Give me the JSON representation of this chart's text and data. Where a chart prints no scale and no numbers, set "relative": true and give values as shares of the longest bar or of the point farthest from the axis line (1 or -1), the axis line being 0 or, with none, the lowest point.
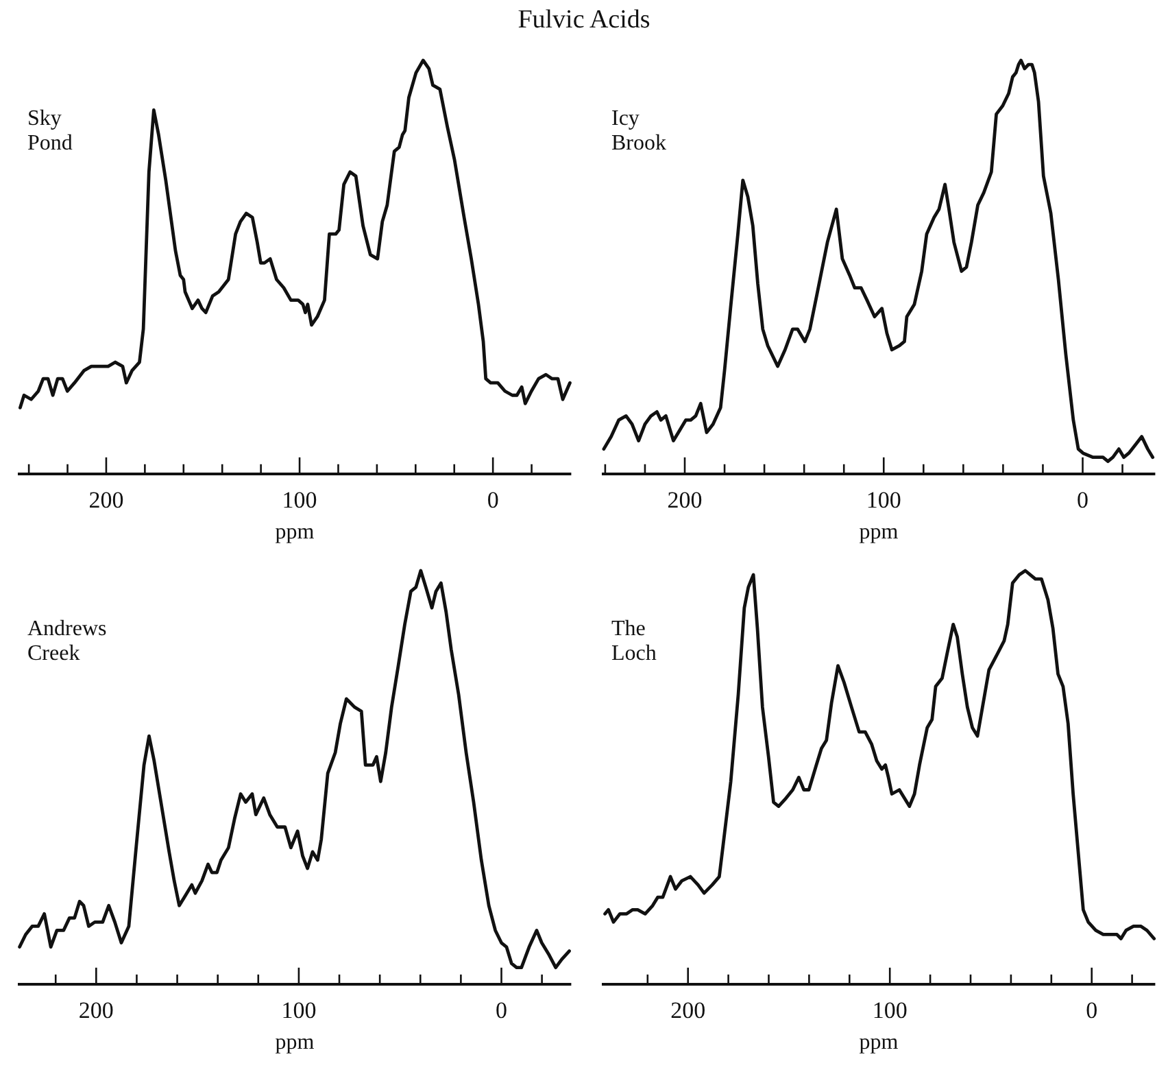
{
  "chart_data": [
    {
      "type": "line",
      "title": "Sky Pond",
      "annotations": [
        "Fulvic Acids"
      ],
      "xlabel": "ppm",
      "relative": true,
      "tick_labels": "x",
      "xlim": [
        245,
        -40
      ],
      "xticks": [
        {
          "value": 240,
          "label": null
        },
        {
          "value": 220,
          "label": null
        },
        200,
        {
          "value": 180,
          "label": null
        },
        {
          "value": 160,
          "label": null
        },
        {
          "value": 140,
          "label": null
        },
        {
          "value": 120,
          "label": null
        },
        100,
        {
          "value": 80,
          "label": null
        },
        {
          "value": 60,
          "label": null
        },
        {
          "value": 40,
          "label": null
        },
        {
          "value": 20,
          "label": null
        },
        0,
        {
          "value": -20,
          "label": null
        }
      ],
      "x": [
        244.5,
        242.5,
        238.8,
        235.1,
        232.6,
        230.1,
        227.6,
        225.1,
        222.6,
        220.1,
        216.4,
        211.4,
        207.7,
        205.2,
        199.0,
        195.3,
        191.5,
        189.6,
        186.6,
        182.8,
        180.8,
        177.9,
        175.4,
        172.9,
        169.2,
        164.2,
        161.7,
        160.0,
        159.2,
        155.5,
        152.5,
        150.5,
        148.5,
        145.0,
        141.8,
        136.8,
        133.1,
        130.6,
        127.6,
        124.4,
        121.9,
        120.1,
        118.2,
        115.2,
        111.9,
        108.2,
        104.5,
        100.7,
        98.3,
        97.0,
        95.8,
        93.8,
        90.8,
        87.1,
        84.6,
        81.3,
        79.6,
        77.1,
        73.9,
        70.9,
        67.2,
        63.4,
        59.7,
        57.2,
        54.7,
        51.0,
        48.5,
        46.8,
        45.5,
        43.5,
        39.8,
        36.1,
        33.1,
        31.1,
        27.4,
        23.6,
        19.9,
        14.9,
        11.2,
        7.5,
        5.0,
        3.7,
        1.2,
        -2.5,
        -6.2,
        -10.0,
        -12.4,
        -14.9,
        -16.7,
        -19.9,
        -23.6,
        -27.4,
        -30.6,
        -33.6,
        -36.1,
        -39.8
      ],
      "series": [
        {
          "color": "#111111",
          "values": [
            0.16,
            0.19,
            0.18,
            0.2,
            0.23,
            0.23,
            0.19,
            0.23,
            0.23,
            0.2,
            0.22,
            0.25,
            0.26,
            0.26,
            0.26,
            0.27,
            0.26,
            0.22,
            0.25,
            0.27,
            0.35,
            0.73,
            0.88,
            0.82,
            0.71,
            0.54,
            0.48,
            0.47,
            0.44,
            0.4,
            0.42,
            0.4,
            0.39,
            0.43,
            0.44,
            0.47,
            0.58,
            0.61,
            0.63,
            0.62,
            0.56,
            0.51,
            0.51,
            0.52,
            0.47,
            0.45,
            0.42,
            0.42,
            0.41,
            0.39,
            0.41,
            0.36,
            0.38,
            0.42,
            0.58,
            0.58,
            0.59,
            0.7,
            0.73,
            0.72,
            0.6,
            0.53,
            0.52,
            0.61,
            0.65,
            0.78,
            0.79,
            0.82,
            0.83,
            0.91,
            0.97,
            1.0,
            0.98,
            0.94,
            0.93,
            0.84,
            0.76,
            0.62,
            0.52,
            0.41,
            0.32,
            0.23,
            0.22,
            0.22,
            0.2,
            0.19,
            0.19,
            0.21,
            0.17,
            0.2,
            0.23,
            0.24,
            0.23,
            0.23,
            0.18,
            0.22
          ]
        }
      ]
    },
    {
      "type": "line",
      "title": "Icy Brook",
      "xlabel": "ppm",
      "relative": true,
      "tick_labels": "x",
      "xlim": [
        241,
        -36
      ],
      "xticks": [
        {
          "value": 240,
          "label": null
        },
        {
          "value": 220,
          "label": null
        },
        200,
        {
          "value": 180,
          "label": null
        },
        {
          "value": 160,
          "label": null
        },
        {
          "value": 140,
          "label": null
        },
        {
          "value": 120,
          "label": null
        },
        100,
        {
          "value": 80,
          "label": null
        },
        {
          "value": 60,
          "label": null
        },
        {
          "value": 40,
          "label": null
        },
        {
          "value": 20,
          "label": null
        },
        0,
        {
          "value": -20,
          "label": null
        }
      ],
      "x": [
        240.7,
        237.0,
        233.2,
        229.5,
        226.5,
        223.2,
        220.0,
        217.0,
        214.0,
        212.0,
        209.5,
        205.7,
        203.2,
        199.5,
        197.0,
        194.5,
        192.0,
        189.0,
        185.8,
        182.0,
        180.0,
        177.0,
        173.3,
        170.8,
        168.3,
        165.8,
        163.3,
        160.8,
        158.3,
        153.3,
        149.6,
        145.8,
        143.3,
        139.6,
        137.1,
        133.3,
        128.3,
        123.8,
        120.8,
        117.1,
        114.6,
        111.4,
        108.4,
        104.6,
        100.9,
        98.4,
        95.9,
        92.1,
        89.6,
        88.4,
        84.6,
        80.9,
        78.4,
        74.7,
        72.2,
        69.2,
        67.2,
        64.7,
        60.9,
        58.4,
        55.9,
        52.7,
        49.7,
        45.9,
        43.4,
        40.2,
        37.2,
        35.2,
        33.5,
        32.2,
        31.0,
        29.2,
        27.2,
        25.5,
        24.2,
        22.2,
        19.7,
        16.0,
        12.2,
        8.5,
        4.7,
        2.2,
        -0.2,
        -5.2,
        -10.2,
        -12.7,
        -15.2,
        -18.2,
        -20.7,
        -23.2,
        -26.5,
        -29.7,
        -32.7,
        -35.2
      ],
      "series": [
        {
          "color": "#111111",
          "values": [
            0.06,
            0.09,
            0.13,
            0.14,
            0.12,
            0.08,
            0.12,
            0.14,
            0.15,
            0.13,
            0.14,
            0.08,
            0.1,
            0.13,
            0.13,
            0.14,
            0.17,
            0.1,
            0.12,
            0.16,
            0.25,
            0.4,
            0.58,
            0.71,
            0.67,
            0.6,
            0.46,
            0.35,
            0.31,
            0.26,
            0.3,
            0.35,
            0.35,
            0.32,
            0.35,
            0.44,
            0.56,
            0.64,
            0.52,
            0.48,
            0.45,
            0.45,
            0.42,
            0.38,
            0.4,
            0.34,
            0.3,
            0.31,
            0.32,
            0.38,
            0.41,
            0.49,
            0.58,
            0.62,
            0.64,
            0.7,
            0.64,
            0.56,
            0.49,
            0.5,
            0.56,
            0.65,
            0.68,
            0.73,
            0.87,
            0.89,
            0.92,
            0.96,
            0.97,
            0.99,
            1.0,
            0.98,
            0.99,
            0.99,
            0.97,
            0.9,
            0.72,
            0.63,
            0.47,
            0.29,
            0.13,
            0.06,
            0.05,
            0.04,
            0.04,
            0.03,
            0.04,
            0.06,
            0.04,
            0.05,
            0.07,
            0.09,
            0.06,
            0.04
          ]
        }
      ]
    },
    {
      "type": "line",
      "title": "Andrews Creek",
      "xlabel": "ppm",
      "relative": true,
      "tick_labels": "x",
      "xlim": [
        238,
        -34
      ],
      "xticks": [
        {
          "value": 220,
          "label": null
        },
        200,
        {
          "value": 180,
          "label": null
        },
        {
          "value": 160,
          "label": null
        },
        {
          "value": 140,
          "label": null
        },
        {
          "value": 120,
          "label": null
        },
        100,
        {
          "value": 80,
          "label": null
        },
        {
          "value": 60,
          "label": null
        },
        {
          "value": 40,
          "label": null
        },
        {
          "value": 20,
          "label": null
        },
        0,
        {
          "value": -20,
          "label": null
        }
      ],
      "x": [
        237.8,
        234.8,
        231.6,
        228.6,
        225.6,
        222.4,
        219.4,
        216.1,
        213.2,
        210.7,
        208.2,
        206.2,
        203.7,
        200.7,
        196.8,
        193.8,
        190.8,
        187.6,
        183.9,
        180.1,
        176.4,
        173.9,
        171.4,
        167.7,
        164.0,
        161.5,
        159.0,
        156.5,
        152.8,
        151.1,
        147.8,
        144.8,
        142.9,
        140.4,
        138.4,
        134.7,
        131.7,
        128.7,
        126.2,
        123.0,
        121.2,
        117.3,
        114.3,
        110.6,
        106.8,
        103.9,
        100.6,
        98.1,
        95.7,
        93.2,
        90.7,
        88.9,
        85.7,
        82.0,
        79.5,
        76.5,
        72.5,
        69.1,
        67.1,
        63.4,
        61.6,
        59.6,
        57.1,
        54.2,
        50.9,
        47.7,
        44.7,
        42.2,
        39.8,
        37.3,
        34.3,
        32.3,
        29.8,
        27.3,
        24.8,
        21.1,
        17.4,
        13.7,
        9.9,
        6.2,
        3.0,
        0.0,
        -2.5,
        -5.0,
        -7.5,
        -9.9,
        -13.7,
        -17.4,
        -19.9,
        -23.6,
        -26.8,
        -29.8,
        -33.5
      ],
      "series": [
        {
          "color": "#111111",
          "values": [
            0.09,
            0.12,
            0.14,
            0.14,
            0.17,
            0.09,
            0.13,
            0.13,
            0.16,
            0.16,
            0.2,
            0.19,
            0.14,
            0.15,
            0.15,
            0.19,
            0.15,
            0.1,
            0.14,
            0.34,
            0.53,
            0.6,
            0.54,
            0.43,
            0.32,
            0.25,
            0.19,
            0.21,
            0.24,
            0.22,
            0.25,
            0.29,
            0.27,
            0.27,
            0.3,
            0.33,
            0.4,
            0.46,
            0.44,
            0.46,
            0.41,
            0.45,
            0.41,
            0.38,
            0.38,
            0.33,
            0.37,
            0.31,
            0.28,
            0.32,
            0.3,
            0.35,
            0.51,
            0.56,
            0.63,
            0.69,
            0.67,
            0.66,
            0.53,
            0.53,
            0.55,
            0.49,
            0.56,
            0.67,
            0.77,
            0.87,
            0.95,
            0.96,
            1.0,
            0.96,
            0.91,
            0.95,
            0.97,
            0.9,
            0.81,
            0.7,
            0.56,
            0.44,
            0.3,
            0.19,
            0.13,
            0.1,
            0.09,
            0.05,
            0.04,
            0.04,
            0.09,
            0.13,
            0.1,
            0.07,
            0.04,
            0.06,
            0.08
          ]
        }
      ]
    },
    {
      "type": "line",
      "title": "The Loch",
      "xlabel": "ppm",
      "relative": true,
      "tick_labels": "x",
      "xlim": [
        242,
        -31
      ],
      "xticks": [
        {
          "value": 220,
          "label": null
        },
        200,
        {
          "value": 180,
          "label": null
        },
        {
          "value": 160,
          "label": null
        },
        {
          "value": 140,
          "label": null
        },
        {
          "value": 120,
          "label": null
        },
        100,
        {
          "value": 80,
          "label": null
        },
        {
          "value": 60,
          "label": null
        },
        {
          "value": 40,
          "label": null
        },
        {
          "value": 20,
          "label": null
        },
        0,
        {
          "value": -20,
          "label": null
        }
      ],
      "x": [
        241.1,
        239.4,
        236.9,
        233.7,
        230.4,
        227.4,
        224.9,
        221.2,
        217.5,
        215.0,
        212.5,
        208.7,
        206.2,
        203.0,
        198.8,
        195.0,
        192.0,
        188.0,
        184.5,
        182.5,
        178.8,
        175.1,
        172.1,
        170.1,
        167.6,
        165.6,
        163.1,
        160.1,
        157.6,
        155.1,
        151.4,
        148.1,
        145.1,
        142.6,
        140.1,
        136.4,
        133.9,
        131.4,
        128.9,
        125.7,
        122.7,
        119.0,
        115.2,
        112.2,
        109.0,
        106.5,
        104.0,
        102.2,
        100.7,
        99.0,
        95.3,
        92.8,
        90.3,
        87.8,
        85.3,
        81.5,
        79.1,
        77.3,
        74.1,
        71.6,
        68.6,
        66.6,
        64.1,
        61.6,
        59.1,
        56.6,
        54.1,
        50.9,
        46.6,
        43.4,
        41.6,
        39.2,
        35.9,
        32.9,
        30.4,
        27.9,
        24.9,
        21.7,
        19.2,
        16.7,
        14.2,
        11.7,
        9.2,
        6.7,
        4.2,
        1.7,
        -2.0,
        -5.7,
        -9.5,
        -12.5,
        -14.5,
        -17.0,
        -20.7,
        -24.4,
        -27.4,
        -30.9
      ],
      "series": [
        {
          "color": "#111111",
          "values": [
            0.17,
            0.18,
            0.15,
            0.17,
            0.17,
            0.18,
            0.18,
            0.17,
            0.19,
            0.21,
            0.21,
            0.26,
            0.23,
            0.25,
            0.26,
            0.24,
            0.22,
            0.24,
            0.26,
            0.34,
            0.49,
            0.7,
            0.91,
            0.96,
            0.99,
            0.86,
            0.67,
            0.55,
            0.44,
            0.43,
            0.45,
            0.47,
            0.5,
            0.47,
            0.47,
            0.53,
            0.57,
            0.59,
            0.68,
            0.77,
            0.73,
            0.67,
            0.61,
            0.61,
            0.58,
            0.54,
            0.52,
            0.53,
            0.5,
            0.46,
            0.47,
            0.45,
            0.43,
            0.46,
            0.53,
            0.62,
            0.64,
            0.72,
            0.74,
            0.8,
            0.87,
            0.84,
            0.75,
            0.67,
            0.62,
            0.6,
            0.67,
            0.76,
            0.8,
            0.83,
            0.87,
            0.97,
            0.99,
            1.0,
            0.99,
            0.98,
            0.98,
            0.93,
            0.86,
            0.75,
            0.72,
            0.63,
            0.46,
            0.32,
            0.18,
            0.15,
            0.13,
            0.12,
            0.12,
            0.12,
            0.11,
            0.13,
            0.14,
            0.14,
            0.13,
            0.11
          ]
        }
      ]
    }
  ]
}
